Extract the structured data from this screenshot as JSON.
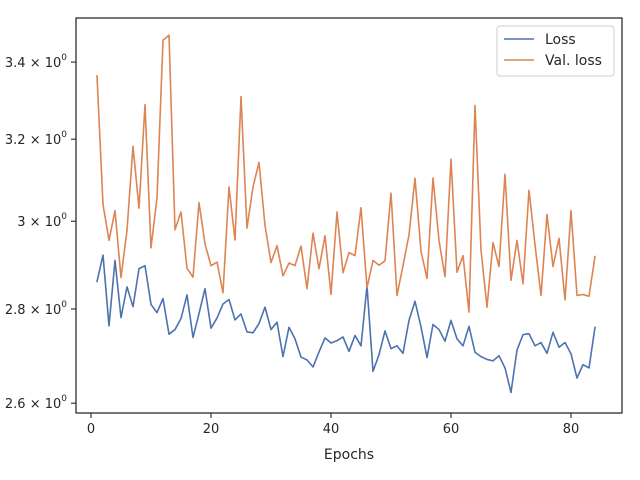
{
  "chart_data": {
    "type": "line",
    "title": "",
    "xlabel": "Epochs",
    "ylabel": "",
    "xlim": [
      -2.5,
      88.5
    ],
    "ylim": [
      2.58,
      3.52
    ],
    "yscale": "log",
    "grid": false,
    "legend_position": "top-right",
    "x_ticks": [
      {
        "value": 0,
        "label": "0"
      },
      {
        "value": 20,
        "label": "20"
      },
      {
        "value": 40,
        "label": "40"
      },
      {
        "value": 60,
        "label": "60"
      },
      {
        "value": 80,
        "label": "80"
      }
    ],
    "y_ticks": [
      {
        "value": 2.6,
        "mantissa": "2.6",
        "exponent": "0"
      },
      {
        "value": 2.8,
        "mantissa": "2.8",
        "exponent": "0"
      },
      {
        "value": 3.0,
        "mantissa": "3",
        "exponent": "0"
      },
      {
        "value": 3.2,
        "mantissa": "3.2",
        "exponent": "0"
      },
      {
        "value": 3.4,
        "mantissa": "3.4",
        "exponent": "0"
      }
    ],
    "multiply_sign": "×",
    "x": [
      1,
      2,
      3,
      4,
      5,
      6,
      7,
      8,
      9,
      10,
      11,
      12,
      13,
      14,
      15,
      16,
      17,
      18,
      19,
      20,
      21,
      22,
      23,
      24,
      25,
      26,
      27,
      28,
      29,
      30,
      31,
      32,
      33,
      34,
      35,
      36,
      37,
      38,
      39,
      40,
      41,
      42,
      43,
      44,
      45,
      46,
      47,
      48,
      49,
      50,
      51,
      52,
      53,
      54,
      55,
      56,
      57,
      58,
      59,
      60,
      61,
      62,
      63,
      64,
      65,
      66,
      67,
      68,
      69,
      70,
      71,
      72,
      73,
      74,
      75,
      76,
      77,
      78,
      79,
      80,
      81,
      82,
      83,
      84
    ],
    "series": [
      {
        "name": "Loss",
        "color": "#4c72b0",
        "values": [
          2.861,
          2.921,
          2.763,
          2.909,
          2.781,
          2.849,
          2.805,
          2.89,
          2.897,
          2.81,
          2.792,
          2.823,
          2.745,
          2.755,
          2.779,
          2.831,
          2.738,
          2.79,
          2.845,
          2.758,
          2.78,
          2.811,
          2.821,
          2.776,
          2.789,
          2.75,
          2.748,
          2.768,
          2.804,
          2.755,
          2.771,
          2.697,
          2.76,
          2.735,
          2.696,
          2.69,
          2.675,
          2.707,
          2.737,
          2.726,
          2.731,
          2.739,
          2.708,
          2.742,
          2.72,
          2.851,
          2.666,
          2.701,
          2.752,
          2.714,
          2.72,
          2.704,
          2.775,
          2.817,
          2.761,
          2.695,
          2.766,
          2.755,
          2.73,
          2.775,
          2.735,
          2.72,
          2.762,
          2.706,
          2.697,
          2.691,
          2.688,
          2.699,
          2.673,
          2.622,
          2.711,
          2.744,
          2.746,
          2.72,
          2.727,
          2.704,
          2.749,
          2.717,
          2.727,
          2.703,
          2.652,
          2.68,
          2.673,
          2.76
        ]
      },
      {
        "name": "Val. loss",
        "color": "#dd8452",
        "values": [
          3.364,
          3.04,
          2.955,
          3.025,
          2.87,
          2.979,
          3.182,
          3.031,
          3.288,
          2.938,
          3.056,
          3.459,
          3.473,
          2.98,
          3.022,
          2.891,
          2.871,
          3.044,
          2.947,
          2.897,
          2.905,
          2.836,
          3.082,
          2.956,
          3.309,
          2.984,
          3.082,
          3.142,
          2.99,
          2.904,
          2.943,
          2.874,
          2.903,
          2.897,
          2.942,
          2.845,
          2.972,
          2.89,
          2.966,
          2.832,
          3.022,
          2.881,
          2.927,
          2.92,
          3.032,
          2.847,
          2.909,
          2.898,
          2.908,
          3.067,
          2.83,
          2.897,
          2.968,
          3.103,
          2.93,
          2.868,
          3.104,
          2.955,
          2.872,
          3.15,
          2.882,
          2.92,
          2.793,
          3.286,
          2.933,
          2.804,
          2.95,
          2.895,
          3.113,
          2.864,
          2.955,
          2.856,
          3.074,
          2.945,
          2.83,
          3.016,
          2.895,
          2.96,
          2.82,
          3.025,
          2.83,
          2.832,
          2.828,
          2.918
        ]
      }
    ]
  }
}
